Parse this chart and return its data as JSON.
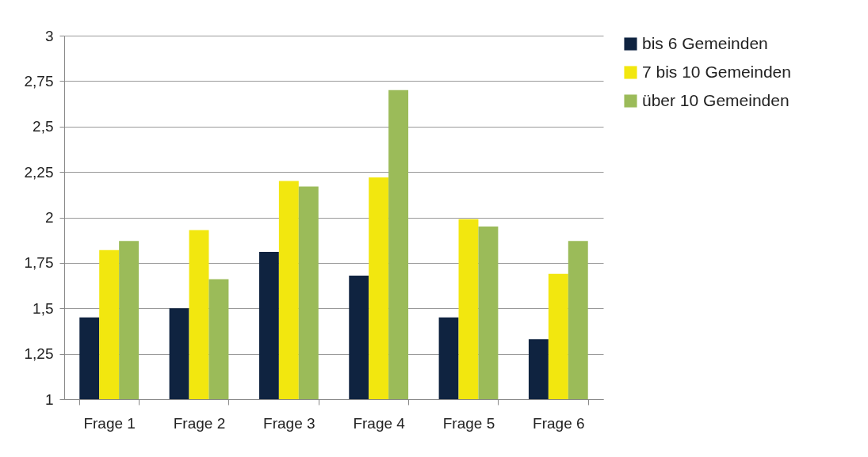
{
  "chart_data": {
    "type": "bar",
    "categories": [
      "Frage 1",
      "Frage 2",
      "Frage 3",
      "Frage 4",
      "Frage 5",
      "Frage 6"
    ],
    "series": [
      {
        "name": "bis 6 Gemeinden",
        "color": "#0f2340",
        "values": [
          1.45,
          1.5,
          1.81,
          1.68,
          1.45,
          1.33
        ]
      },
      {
        "name": "7 bis 10 Gemeinden",
        "color": "#f2e70f",
        "values": [
          1.82,
          1.93,
          2.2,
          2.22,
          1.99,
          1.69
        ]
      },
      {
        "name": "über 10 Gemeinden",
        "color": "#9bbb59",
        "values": [
          1.87,
          1.66,
          2.17,
          2.7,
          1.95,
          1.87
        ]
      }
    ],
    "ylim": [
      1,
      3
    ],
    "yticks": [
      1,
      {
        "value": 1.25,
        "label": "1,25"
      },
      {
        "value": 1.5,
        "label": "1,5"
      },
      {
        "value": 1.75,
        "label": "1,75"
      },
      2,
      {
        "value": 2.25,
        "label": "2,25"
      },
      {
        "value": 2.5,
        "label": "2,5"
      },
      {
        "value": 2.75,
        "label": "2,75"
      },
      3
    ],
    "grid": "y",
    "legend": "right"
  }
}
